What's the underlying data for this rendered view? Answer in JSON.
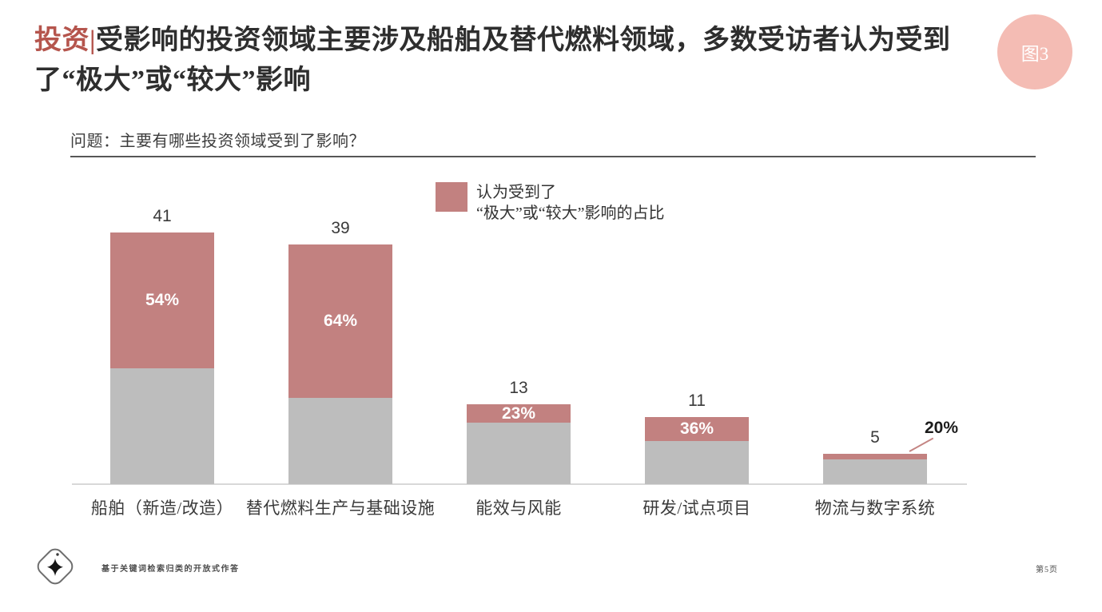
{
  "header": {
    "title_accent": "投资",
    "title_separator": "|",
    "title_text": "受影响的投资领域主要涉及船舶及替代燃料领域，多数受访者认为受到了“极大”或“较大”影响",
    "badge": "图3"
  },
  "question": "问题：主要有哪些投资领域受到了影响？",
  "chart_data": {
    "type": "bar",
    "stacked": true,
    "grid": false,
    "value_axis_visible": false,
    "legend_position": "top-center",
    "categories": [
      "船舶（新造/改造）",
      "替代燃料生产与基础设施",
      "能效与风能",
      "研发/试点项目",
      "物流与数字系统"
    ],
    "totals": [
      41,
      39,
      13,
      11,
      5
    ],
    "total_labels": [
      "41",
      "39",
      "13",
      "11",
      "5"
    ],
    "highlight_series": {
      "legend_line1": "认为受到了",
      "legend_line2": "“极大”或“较大”影响的占比",
      "percent_of_total": [
        54,
        64,
        23,
        36,
        20
      ],
      "labels": [
        "54%",
        "64%",
        "23%",
        "36%",
        "20%"
      ],
      "label_placement": [
        "inside",
        "inside",
        "inside",
        "inside",
        "callout"
      ],
      "color": "#c28180"
    },
    "base_color": "#bdbdbd",
    "axis_color": "#d8d8d8",
    "ylim": [
      0,
      41
    ]
  },
  "footer": {
    "logo_icon": "sparkle-diamond-logo",
    "note": "基于关键词检索归类的开放式作答",
    "page": "第5页"
  }
}
